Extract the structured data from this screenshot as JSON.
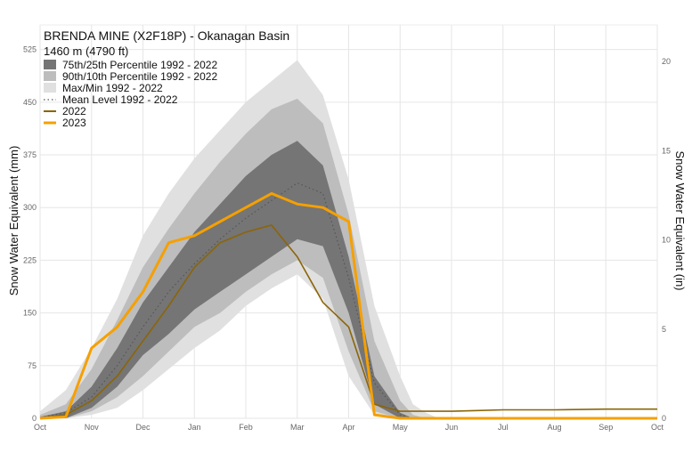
{
  "chart_data": {
    "type": "area",
    "title": "BRENDA MINE (X2F18P) - Okanagan Basin",
    "subtitle": "1460 m (4790 ft)",
    "ylabel": "Snow Water Equivalent (mm)",
    "ylabel_right": "Snow Water Equivalent (in)",
    "ylim": [
      0,
      560
    ],
    "yticks": [
      "0",
      "75",
      "150",
      "225",
      "300",
      "375",
      "450",
      "525"
    ],
    "yticks_values": [
      0,
      75,
      150,
      225,
      300,
      375,
      450,
      525
    ],
    "ylim_right": [
      0,
      22.05
    ],
    "yticks_right": [
      "0",
      "5",
      "10",
      "15",
      "20"
    ],
    "yticks_right_values": [
      0,
      5,
      10,
      15,
      20
    ],
    "x_month_offset_range": [
      0,
      12
    ],
    "xticks": [
      "Oct",
      "Nov",
      "Dec",
      "Jan",
      "Feb",
      "Mar",
      "Apr",
      "May",
      "Jun",
      "Jul",
      "Aug",
      "Sep",
      "Oct"
    ],
    "grid": true,
    "legend_position": "top-left",
    "legend": [
      {
        "label": "75th/25th Percentile 1992 - 2022",
        "kind": "box",
        "color": "#757575"
      },
      {
        "label": "90th/10th Percentile 1992 - 2022",
        "kind": "box",
        "color": "#bdbdbd"
      },
      {
        "label": "Max/Min 1992 - 2022",
        "kind": "box",
        "color": "#e0e0e0"
      },
      {
        "label": "Mean Level 1992 - 2022",
        "kind": "dotted",
        "color": "#555555"
      },
      {
        "label": "2022",
        "kind": "line",
        "color": "#8b6508"
      },
      {
        "label": "2023",
        "kind": "line",
        "color": "#f5a000"
      }
    ],
    "x": [
      0,
      0.5,
      1,
      1.5,
      2,
      2.5,
      3,
      3.5,
      4,
      4.5,
      5,
      5.5,
      6,
      6.5,
      7,
      7.25,
      7.5,
      7.75,
      8,
      8.5,
      9,
      10,
      11,
      12
    ],
    "series": [
      {
        "name": "Max/Min 1992 - 2022",
        "type": "band",
        "color": "#e0e0e0",
        "upper": [
          10,
          40,
          100,
          170,
          260,
          320,
          370,
          410,
          450,
          480,
          510,
          460,
          340,
          160,
          60,
          20,
          8,
          0,
          0,
          0,
          0,
          0,
          0,
          0
        ],
        "lower": [
          0,
          0,
          5,
          15,
          40,
          70,
          100,
          125,
          160,
          185,
          205,
          170,
          60,
          5,
          0,
          0,
          0,
          0,
          0,
          0,
          0,
          0,
          0,
          0
        ]
      },
      {
        "name": "90th/10th Percentile 1992 - 2022",
        "type": "band",
        "color": "#bdbdbd",
        "upper": [
          5,
          20,
          70,
          140,
          215,
          270,
          320,
          365,
          405,
          440,
          455,
          420,
          290,
          110,
          25,
          5,
          0,
          0,
          0,
          0,
          0,
          0,
          0,
          0
        ],
        "lower": [
          0,
          0,
          10,
          30,
          60,
          95,
          130,
          150,
          180,
          205,
          225,
          200,
          95,
          10,
          0,
          0,
          0,
          0,
          0,
          0,
          0,
          0,
          0,
          0
        ]
      },
      {
        "name": "75th/25th Percentile 1992 - 2022",
        "type": "band",
        "color": "#757575",
        "upper": [
          2,
          10,
          45,
          100,
          165,
          215,
          265,
          305,
          345,
          375,
          395,
          360,
          230,
          60,
          8,
          0,
          0,
          0,
          0,
          0,
          0,
          0,
          0,
          0
        ],
        "lower": [
          0,
          0,
          15,
          45,
          90,
          120,
          155,
          180,
          205,
          230,
          255,
          245,
          150,
          20,
          0,
          0,
          0,
          0,
          0,
          0,
          0,
          0,
          0,
          0
        ]
      },
      {
        "name": "Mean Level 1992 - 2022",
        "type": "line",
        "style": "dotted",
        "color": "#555555",
        "values": [
          1,
          8,
          30,
          75,
          130,
          180,
          220,
          255,
          285,
          310,
          335,
          320,
          200,
          50,
          5,
          0,
          0,
          0,
          0,
          0,
          0,
          0,
          0,
          0
        ]
      },
      {
        "name": "2022",
        "type": "line",
        "color": "#8b6508",
        "values": [
          0,
          5,
          25,
          60,
          110,
          160,
          215,
          250,
          265,
          275,
          230,
          165,
          130,
          20,
          10,
          10,
          10,
          10,
          10,
          11,
          12,
          12,
          13,
          13
        ]
      },
      {
        "name": "2023",
        "type": "line",
        "color": "#f5a000",
        "values": [
          0,
          2,
          100,
          130,
          180,
          250,
          260,
          280,
          300,
          320,
          305,
          300,
          280,
          5,
          0,
          0,
          0,
          0,
          0,
          0,
          0,
          0,
          0,
          0
        ]
      }
    ]
  }
}
